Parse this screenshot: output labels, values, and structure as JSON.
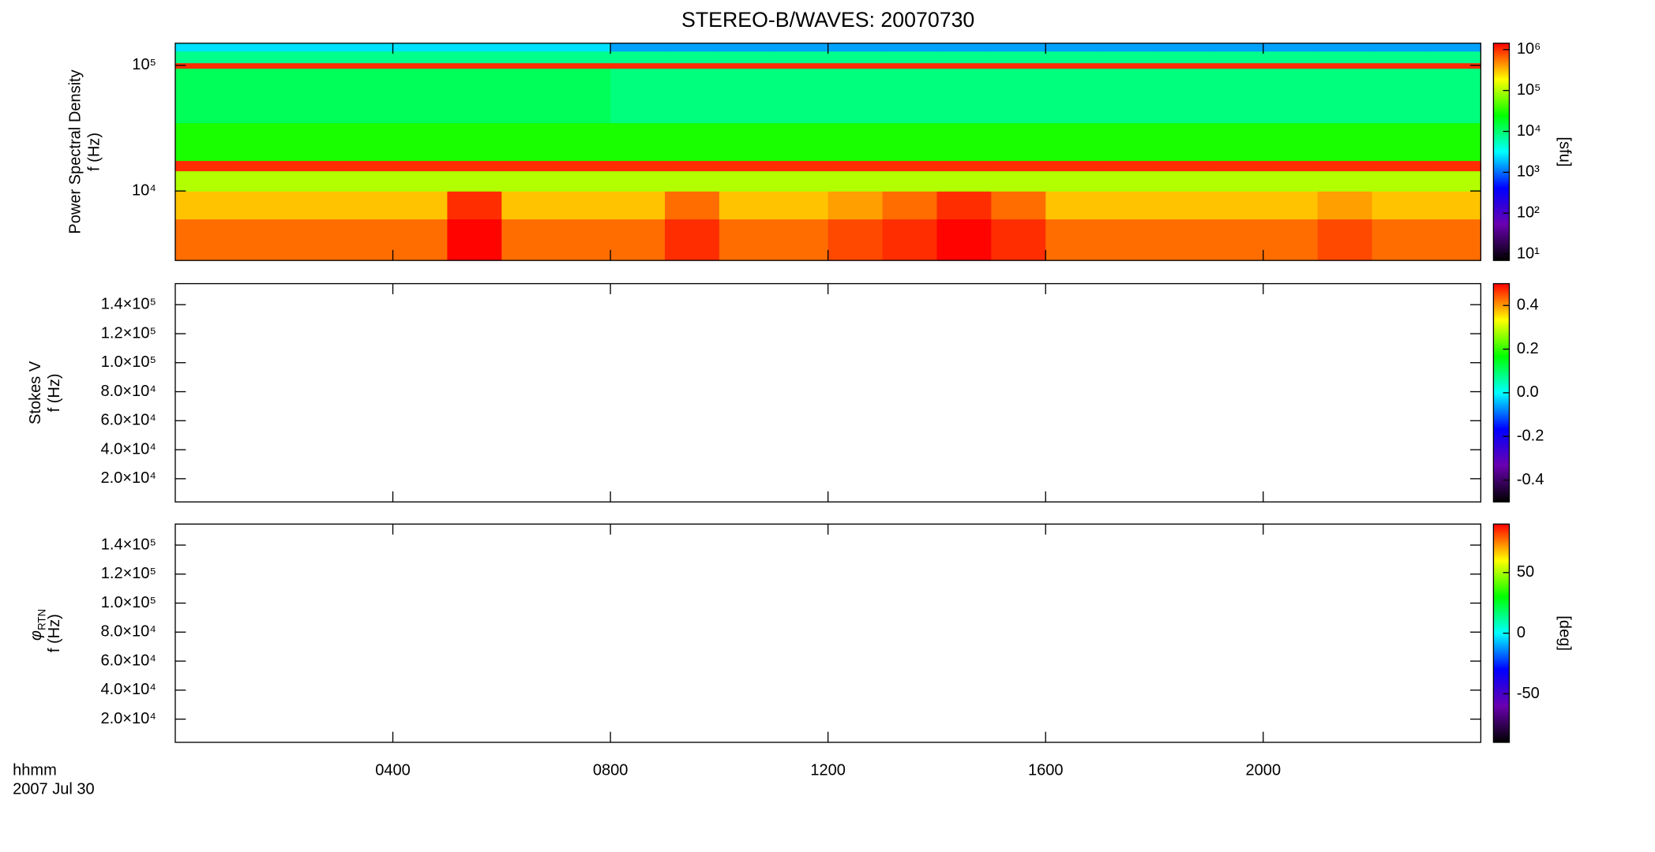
{
  "chart_data": [
    {
      "type": "heatmap",
      "title": "STEREO-B/WAVES: 20070730",
      "y_label": [
        "Power Spectral Density",
        "f (Hz)"
      ],
      "colorbar_label": "[sfu]",
      "x_bins": [
        0,
        1,
        2,
        3,
        4,
        5,
        6,
        7,
        8,
        9,
        10,
        11,
        12,
        13,
        14,
        15,
        16,
        17,
        18,
        19,
        20,
        21,
        22,
        23,
        24
      ],
      "y_bins": [
        2800,
        6000,
        10000,
        14500,
        17500,
        35000,
        95000,
        105000,
        130000,
        150000
      ],
      "values": [
        [
          600000,
          600000,
          600000,
          600000,
          600000,
          1400000,
          600000,
          600000,
          600000,
          1000000,
          600000,
          600000,
          800000,
          1000000,
          1400000,
          1000000,
          600000,
          600000,
          600000,
          600000,
          600000,
          800000,
          600000,
          600000
        ],
        [
          300000,
          300000,
          300000,
          300000,
          300000,
          1000000,
          300000,
          300000,
          300000,
          600000,
          300000,
          300000,
          400000,
          600000,
          1000000,
          600000,
          300000,
          300000,
          300000,
          300000,
          300000,
          400000,
          300000,
          300000
        ],
        [
          100000,
          100000,
          100000,
          100000,
          100000,
          100000,
          100000,
          100000,
          100000,
          100000,
          100000,
          100000,
          100000,
          100000,
          100000,
          100000,
          100000,
          100000,
          100000,
          100000,
          100000,
          100000,
          100000,
          100000
        ],
        [
          1000000,
          1000000,
          1000000,
          1000000,
          1000000,
          1000000,
          1000000,
          1000000,
          1000000,
          1000000,
          1000000,
          1000000,
          1000000,
          1000000,
          1000000,
          1000000,
          1000000,
          1000000,
          1000000,
          1000000,
          1000000,
          1000000,
          1000000,
          1000000
        ],
        [
          30000,
          30000,
          30000,
          30000,
          30000,
          30000,
          30000,
          30000,
          30000,
          30000,
          30000,
          30000,
          30000,
          30000,
          30000,
          30000,
          30000,
          30000,
          30000,
          30000,
          30000,
          30000,
          30000,
          30000
        ],
        [
          12000,
          12000,
          12000,
          12000,
          12000,
          12000,
          12000,
          12000,
          9000,
          9000,
          9000,
          9000,
          9000,
          9000,
          9000,
          9000,
          9000,
          9000,
          9000,
          9000,
          9000,
          9000,
          9000,
          9000
        ],
        [
          1000000,
          1000000,
          1000000,
          1000000,
          1000000,
          1000000,
          1000000,
          1000000,
          1000000,
          1000000,
          1000000,
          1000000,
          1000000,
          1000000,
          1000000,
          1000000,
          1000000,
          1000000,
          1000000,
          1000000,
          1000000,
          1000000,
          1000000,
          1000000
        ],
        [
          8000,
          8000,
          8000,
          8000,
          8000,
          8000,
          8000,
          8000,
          8000,
          8000,
          8000,
          8000,
          8000,
          8000,
          8000,
          8000,
          8000,
          8000,
          8000,
          8000,
          8000,
          8000,
          8000,
          8000
        ],
        [
          2500,
          2500,
          2500,
          2500,
          2500,
          2500,
          2500,
          2500,
          1500,
          1500,
          1500,
          1500,
          1500,
          1500,
          1500,
          1500,
          1500,
          1500,
          1500,
          1500,
          1500,
          1500,
          1500,
          1500
        ]
      ],
      "xlim": [
        0,
        24
      ],
      "xticks": [
        {
          "value": 4,
          "label": "0400"
        },
        {
          "value": 8,
          "label": "0800"
        },
        {
          "value": 12,
          "label": "1200"
        },
        {
          "value": 16,
          "label": "1600"
        },
        {
          "value": 20,
          "label": "2000"
        }
      ],
      "ylim": [
        2800,
        150000
      ],
      "ylog": true,
      "yticks": [
        {
          "value": 10000,
          "label": "10⁴"
        },
        {
          "value": 100000,
          "label": "10⁵"
        }
      ],
      "clim": [
        7,
        1430000
      ],
      "clog": true,
      "cticks": [
        {
          "value": 10,
          "label": "10¹"
        },
        {
          "value": 100,
          "label": "10²"
        },
        {
          "value": 1000,
          "label": "10³"
        },
        {
          "value": 10000,
          "label": "10⁴"
        },
        {
          "value": 100000,
          "label": "10⁵"
        },
        {
          "value": 1000000,
          "label": "10⁶"
        }
      ],
      "colormap": [
        "#000000",
        "#6a00b0",
        "#0000ff",
        "#00ffff",
        "#00ff00",
        "#ffff00",
        "#ff0000"
      ]
    },
    {
      "type": "heatmap",
      "y_label": [
        "Stokes V",
        "f (Hz)"
      ],
      "xlim": [
        0,
        24
      ],
      "xticks": [
        {
          "value": 4,
          "label": "0400"
        },
        {
          "value": 8,
          "label": "0800"
        },
        {
          "value": 12,
          "label": "1200"
        },
        {
          "value": 16,
          "label": "1600"
        },
        {
          "value": 20,
          "label": "2000"
        }
      ],
      "ylim": [
        4000,
        154500
      ],
      "yticks": [
        {
          "value": 20000,
          "label": "2.0×10⁴"
        },
        {
          "value": 40000,
          "label": "4.0×10⁴"
        },
        {
          "value": 60000,
          "label": "6.0×10⁴"
        },
        {
          "value": 80000,
          "label": "8.0×10⁴"
        },
        {
          "value": 100000,
          "label": "1.0×10⁵"
        },
        {
          "value": 120000,
          "label": "1.2×10⁵"
        },
        {
          "value": 140000,
          "label": "1.4×10⁵"
        }
      ],
      "clim": [
        -0.5,
        0.5
      ],
      "cticks": [
        -0.4,
        -0.2,
        {
          "value": 0,
          "label": "0.0"
        },
        0.2,
        0.4
      ],
      "colormap": [
        "#000000",
        "#6a00b0",
        "#0000ff",
        "#00ffff",
        "#00ff00",
        "#ffff00",
        "#ff0000"
      ]
    },
    {
      "type": "heatmap",
      "y_symbol": "φ",
      "y_symbol_sub": "RTN",
      "y_label": [
        "f (Hz)"
      ],
      "colorbar_label": "[deg]",
      "x_caption": [
        "hhmm",
        "2007 Jul 30"
      ],
      "xlim": [
        0,
        24
      ],
      "xticks": [
        {
          "value": 4,
          "label": "0400"
        },
        {
          "value": 8,
          "label": "0800"
        },
        {
          "value": 12,
          "label": "1200"
        },
        {
          "value": 16,
          "label": "1600"
        },
        {
          "value": 20,
          "label": "2000"
        }
      ],
      "ylim": [
        4000,
        154500
      ],
      "yticks": [
        {
          "value": 20000,
          "label": "2.0×10⁴"
        },
        {
          "value": 40000,
          "label": "4.0×10⁴"
        },
        {
          "value": 60000,
          "label": "6.0×10⁴"
        },
        {
          "value": 80000,
          "label": "8.0×10⁴"
        },
        {
          "value": 100000,
          "label": "1.0×10⁵"
        },
        {
          "value": 120000,
          "label": "1.2×10⁵"
        },
        {
          "value": 140000,
          "label": "1.4×10⁵"
        }
      ],
      "clim": [
        -90,
        90
      ],
      "cticks": [
        -50,
        0,
        50
      ],
      "colormap": [
        "#000000",
        "#6a00b0",
        "#0000ff",
        "#00ffff",
        "#00ff00",
        "#ffff00",
        "#ff0000"
      ]
    }
  ]
}
